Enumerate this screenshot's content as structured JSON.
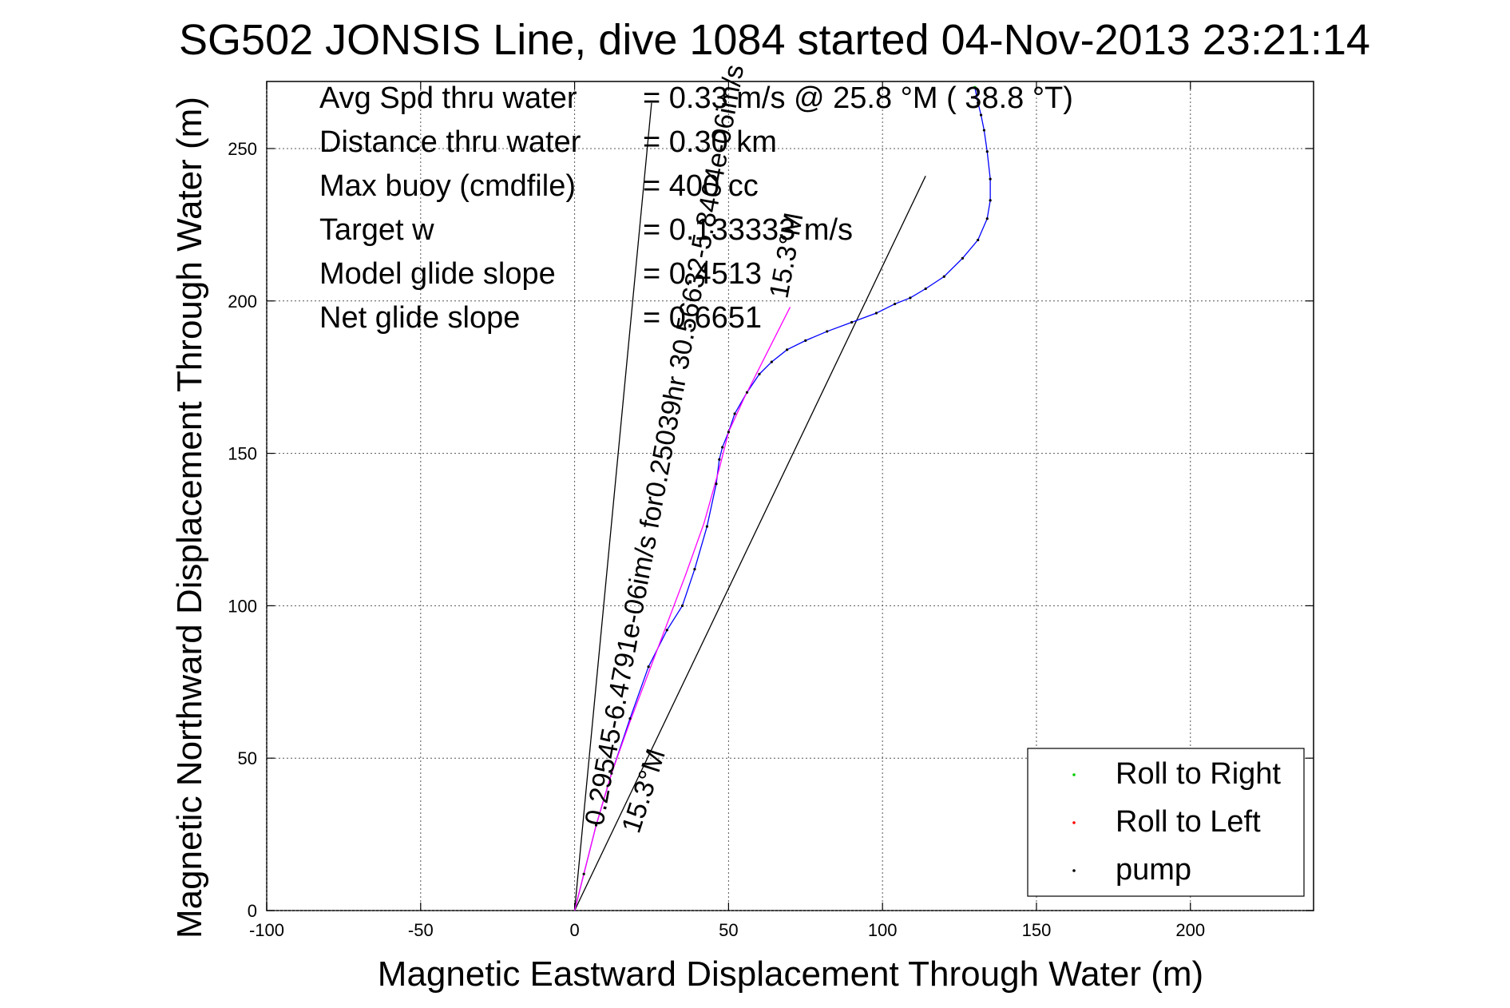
{
  "chart_data": {
    "type": "line",
    "title": "SG502 JONSIS Line, dive 1084 started 04-Nov-2013 23:21:14",
    "xlabel": "Magnetic Eastward Displacement Through Water (m)",
    "ylabel": "Magnetic Northward Displacement Through Water (m)",
    "xlim": [
      -100,
      240
    ],
    "ylim": [
      0,
      272
    ],
    "xticks": [
      -100,
      -50,
      0,
      50,
      100,
      150,
      200
    ],
    "yticks": [
      0,
      50,
      100,
      150,
      200,
      250
    ],
    "xtick_labels": [
      "-100",
      "-50",
      "0",
      "50",
      "100",
      "150",
      "200"
    ],
    "ytick_labels": [
      "0",
      "50",
      "100",
      "150",
      "200",
      "250"
    ],
    "grid": true,
    "legend_position": "bottom-right",
    "legend": [
      {
        "label": "Roll to Right",
        "color": "#00cc00"
      },
      {
        "label": "Roll to Left",
        "color": "#ff0000"
      },
      {
        "label": "pump",
        "color": "#000000"
      }
    ],
    "stats": [
      {
        "label": "Avg Spd thru water",
        "value": "=  0.33 m/s @  25.8 °M ( 38.8 °T)"
      },
      {
        "label": "Distance thru water",
        "value": "=  0.30 km"
      },
      {
        "label": "Max buoy (cmdfile)",
        "value": "= 400 cc"
      },
      {
        "label": "Target w",
        "value": "= 0.133333 m/s"
      },
      {
        "label": "Model glide slope",
        "value": "= 0.4513"
      },
      {
        "label": "Net glide slope",
        "value": "= 0.6651"
      }
    ],
    "series": [
      {
        "color": "#0000ff",
        "x": [
          0,
          3,
          7,
          12,
          18,
          24,
          30,
          35,
          39,
          43,
          46,
          47,
          48,
          50,
          52,
          56,
          60,
          64,
          69,
          75,
          82,
          90,
          98,
          104,
          109,
          114,
          120,
          126,
          131,
          134,
          135,
          135,
          134,
          133,
          132,
          131,
          130
        ],
        "y": [
          0,
          12,
          28,
          45,
          63,
          80,
          92,
          100,
          112,
          126,
          140,
          148,
          152,
          157,
          163,
          170,
          176,
          180,
          184,
          187,
          190,
          193,
          196,
          199,
          201,
          204,
          208,
          214,
          220,
          227,
          233,
          240,
          249,
          256,
          261,
          265,
          270
        ]
      },
      {
        "color": "#ff00ff",
        "x": [
          0,
          3,
          7,
          12,
          18,
          24,
          30,
          36,
          42,
          47,
          50,
          55,
          62,
          70
        ],
        "y": [
          0,
          12,
          28,
          45,
          62,
          78,
          94,
          110,
          127,
          145,
          157,
          168,
          182,
          198
        ]
      }
    ],
    "reference_lines": [
      {
        "name": "glide",
        "x": [
          0,
          25
        ],
        "y": [
          0,
          265
        ]
      },
      {
        "name": "net",
        "x": [
          0,
          114
        ],
        "y": [
          0,
          241
        ]
      }
    ],
    "annotations": [
      "0.29545-6.4791e-06im/s for0.25039hr 30.56632-5.8404e-06im/s",
      "15.3°M",
      "15.3°M"
    ]
  }
}
